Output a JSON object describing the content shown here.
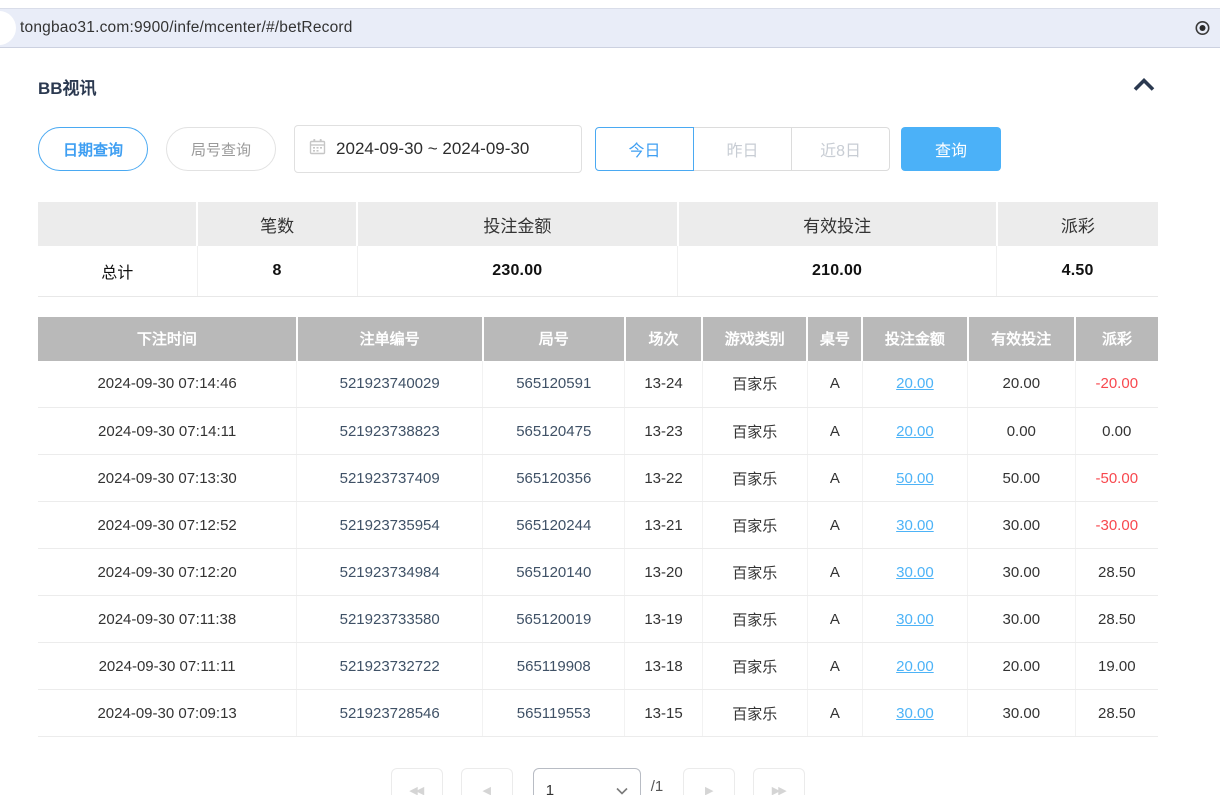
{
  "colors": {
    "accent": "#3f9ff2",
    "accent_border": "#4aa9f2",
    "button_blue": "#4bb1f8",
    "negative_red": "#f8484e",
    "link_blue": "#4db3f7",
    "table_header_gray": "#b9b9b9",
    "summary_header_gray": "#ececec",
    "urlbar_bg": "#e9edf8",
    "title_navy": "#2b3950"
  },
  "browser": {
    "url": "tongbao31.com:9900/infe/mcenter/#/betRecord"
  },
  "panel": {
    "title": "BB视讯"
  },
  "filters": {
    "date_query_label": "日期查询",
    "round_query_label": "局号查询",
    "date_range_value": "2024-09-30 ~ 2024-09-30",
    "quick_buttons": [
      {
        "label": "今日",
        "selected": true
      },
      {
        "label": "昨日",
        "selected": false
      },
      {
        "label": "近8日",
        "selected": false
      }
    ],
    "search_label": "查询"
  },
  "summary": {
    "headers": [
      "",
      "笔数",
      "投注金额",
      "有效投注",
      "派彩"
    ],
    "total_label": "总计",
    "values": [
      "8",
      "230.00",
      "210.00",
      "4.50"
    ]
  },
  "bet_table": {
    "headers": [
      "下注时间",
      "注单编号",
      "局号",
      "场次",
      "游戏类别",
      "桌号",
      "投注金额",
      "有效投注",
      "派彩"
    ],
    "rows": [
      [
        "2024-09-30 07:14:46",
        "521923740029",
        "565120591",
        "13-24",
        "百家乐",
        "A",
        "20.00",
        "20.00",
        "-20.00"
      ],
      [
        "2024-09-30 07:14:11",
        "521923738823",
        "565120475",
        "13-23",
        "百家乐",
        "A",
        "20.00",
        "0.00",
        "0.00"
      ],
      [
        "2024-09-30 07:13:30",
        "521923737409",
        "565120356",
        "13-22",
        "百家乐",
        "A",
        "50.00",
        "50.00",
        "-50.00"
      ],
      [
        "2024-09-30 07:12:52",
        "521923735954",
        "565120244",
        "13-21",
        "百家乐",
        "A",
        "30.00",
        "30.00",
        "-30.00"
      ],
      [
        "2024-09-30 07:12:20",
        "521923734984",
        "565120140",
        "13-20",
        "百家乐",
        "A",
        "30.00",
        "30.00",
        "28.50"
      ],
      [
        "2024-09-30 07:11:38",
        "521923733580",
        "565120019",
        "13-19",
        "百家乐",
        "A",
        "30.00",
        "30.00",
        "28.50"
      ],
      [
        "2024-09-30 07:11:11",
        "521923732722",
        "565119908",
        "13-18",
        "百家乐",
        "A",
        "20.00",
        "20.00",
        "19.00"
      ],
      [
        "2024-09-30 07:09:13",
        "521923728546",
        "565119553",
        "13-15",
        "百家乐",
        "A",
        "30.00",
        "30.00",
        "28.50"
      ]
    ]
  },
  "pagination": {
    "first_glyph": "◀◀",
    "prev_glyph": "◀",
    "next_glyph": "▶",
    "last_glyph": "▶▶",
    "page_value": "1",
    "total_label": "/1"
  }
}
